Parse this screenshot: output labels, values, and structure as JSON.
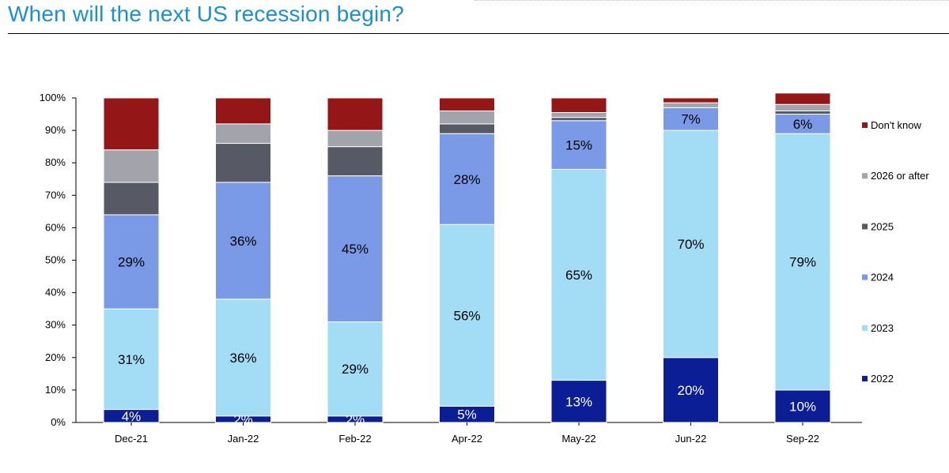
{
  "header": {
    "title": "When will the next US recession begin?"
  },
  "chart_data": {
    "type": "bar",
    "stacked": true,
    "categories": [
      "Dec-21",
      "Jan-22",
      "Feb-22",
      "Apr-22",
      "May-22",
      "Jun-22",
      "Sep-22"
    ],
    "ylim": [
      0,
      100
    ],
    "yticks": [
      "0%",
      "10%",
      "20%",
      "30%",
      "40%",
      "50%",
      "60%",
      "70%",
      "80%",
      "90%",
      "100%"
    ],
    "legend_position": "right",
    "series": [
      {
        "name": "2022",
        "color": "#0b1e96",
        "label_color": "#ffffff",
        "values": [
          4,
          2,
          2,
          5,
          13,
          20,
          10
        ],
        "labels": [
          "4%",
          "2%",
          "2%",
          "5%",
          "13%",
          "20%",
          "10%"
        ]
      },
      {
        "name": "2023",
        "color": "#a3dcf5",
        "label_color": "#000000",
        "values": [
          31,
          36,
          29,
          56,
          65,
          70,
          79
        ],
        "labels": [
          "31%",
          "36%",
          "29%",
          "56%",
          "65%",
          "70%",
          "79%"
        ]
      },
      {
        "name": "2024",
        "color": "#7a99e6",
        "label_color": "#000000",
        "values": [
          29,
          36,
          45,
          28,
          15,
          7,
          6
        ],
        "labels": [
          "29%",
          "36%",
          "45%",
          "28%",
          "15%",
          "7%",
          "6%"
        ]
      },
      {
        "name": "2025",
        "color": "#575965",
        "label_color": "#ffffff",
        "values": [
          10,
          12,
          9,
          3,
          1,
          0,
          1
        ],
        "labels": [
          "",
          "",
          "",
          "",
          "",
          "",
          ""
        ]
      },
      {
        "name": "2026 or after",
        "color": "#a3a3ab",
        "label_color": "#000000",
        "values": [
          10,
          6,
          5,
          4,
          1.5,
          1.5,
          2
        ],
        "labels": [
          "",
          "",
          "",
          "",
          "",
          "",
          ""
        ]
      },
      {
        "name": "Don't know",
        "color": "#941616",
        "label_color": "#ffffff",
        "values": [
          16,
          8,
          10,
          4,
          4.5,
          1.5,
          3.5
        ],
        "labels": [
          "",
          "",
          "",
          "",
          "",
          "",
          ""
        ]
      }
    ]
  }
}
